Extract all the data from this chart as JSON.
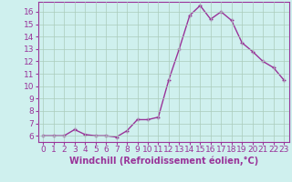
{
  "x": [
    0,
    1,
    2,
    3,
    4,
    5,
    6,
    7,
    8,
    9,
    10,
    11,
    12,
    13,
    14,
    15,
    16,
    17,
    18,
    19,
    20,
    21,
    22,
    23
  ],
  "y": [
    6.0,
    6.0,
    6.0,
    6.5,
    6.1,
    6.0,
    6.0,
    5.9,
    6.4,
    7.3,
    7.3,
    7.5,
    10.5,
    13.0,
    15.7,
    16.5,
    15.4,
    16.0,
    15.3,
    13.5,
    12.8,
    12.0,
    11.5,
    10.5
  ],
  "xlabel": "Windchill (Refroidissement éolien,°C)",
  "line_color": "#993399",
  "marker": "+",
  "background_color": "#cff0ee",
  "grid_color": "#aaccbb",
  "axis_color": "#993399",
  "tick_color": "#993399",
  "xlim": [
    -0.5,
    23.5
  ],
  "ylim": [
    5.5,
    16.8
  ],
  "yticks": [
    6,
    7,
    8,
    9,
    10,
    11,
    12,
    13,
    14,
    15,
    16
  ],
  "xticks": [
    0,
    1,
    2,
    3,
    4,
    5,
    6,
    7,
    8,
    9,
    10,
    11,
    12,
    13,
    14,
    15,
    16,
    17,
    18,
    19,
    20,
    21,
    22,
    23
  ],
  "xtick_labels": [
    "0",
    "1",
    "2",
    "3",
    "4",
    "5",
    "6",
    "7",
    "8",
    "9",
    "10",
    "11",
    "12",
    "13",
    "14",
    "15",
    "16",
    "17",
    "18",
    "19",
    "20",
    "21",
    "22",
    "23"
  ],
  "ytick_labels": [
    "6",
    "7",
    "8",
    "9",
    "10",
    "11",
    "12",
    "13",
    "14",
    "15",
    "16"
  ],
  "font_size": 6.5,
  "xlabel_fontsize": 7,
  "linewidth": 1.0,
  "markersize": 3.5,
  "markeredgewidth": 1.0
}
